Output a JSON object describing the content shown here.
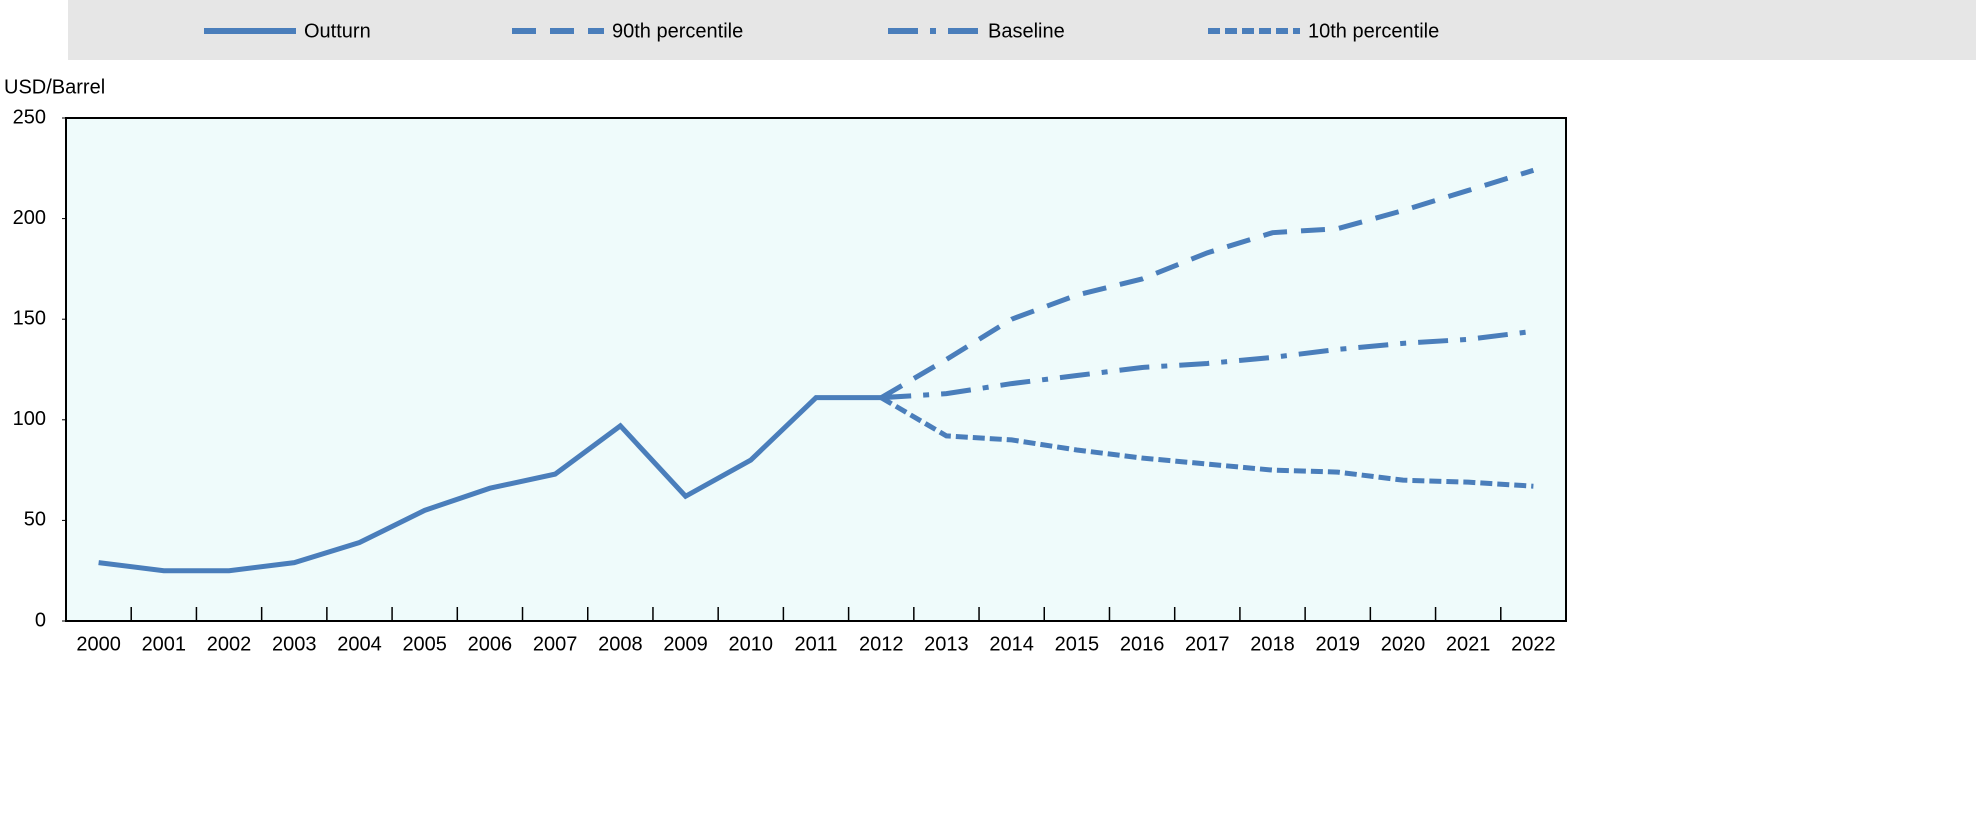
{
  "chart_data": {
    "type": "line",
    "y_label": "USD/Barrel",
    "categories": [
      "2000",
      "2001",
      "2002",
      "2003",
      "2004",
      "2005",
      "2006",
      "2007",
      "2008",
      "2009",
      "2010",
      "2011",
      "2012",
      "2013",
      "2014",
      "2015",
      "2016",
      "2017",
      "2018",
      "2019",
      "2020",
      "2021",
      "2022"
    ],
    "series": [
      {
        "name": "Outturn",
        "color": "#4a7ebb",
        "dash": "solid",
        "values": [
          29,
          25,
          25,
          29,
          39,
          55,
          66,
          73,
          97,
          62,
          80,
          111,
          111,
          null,
          null,
          null,
          null,
          null,
          null,
          null,
          null,
          null,
          null
        ]
      },
      {
        "name": "90th percentile",
        "color": "#4a7ebb",
        "dash": "dashed",
        "values": [
          null,
          null,
          null,
          null,
          null,
          null,
          null,
          null,
          null,
          null,
          null,
          null,
          111,
          130,
          150,
          162,
          170,
          183,
          193,
          195,
          204,
          214,
          224
        ]
      },
      {
        "name": "Baseline",
        "color": "#4a7ebb",
        "dash": "dashdot",
        "values": [
          null,
          null,
          null,
          null,
          null,
          null,
          null,
          null,
          null,
          null,
          null,
          null,
          111,
          113,
          118,
          122,
          126,
          128,
          131,
          135,
          138,
          140,
          144
        ]
      },
      {
        "name": "10th percentile",
        "color": "#4a7ebb",
        "dash": "shortdash",
        "values": [
          null,
          null,
          null,
          null,
          null,
          null,
          null,
          null,
          null,
          null,
          null,
          null,
          111,
          92,
          90,
          85,
          81,
          78,
          75,
          74,
          70,
          69,
          67
        ]
      }
    ],
    "ylim": [
      0,
      250
    ],
    "yticks": [
      0,
      50,
      100,
      150,
      200,
      250
    ],
    "grid": false,
    "legend": "top"
  }
}
